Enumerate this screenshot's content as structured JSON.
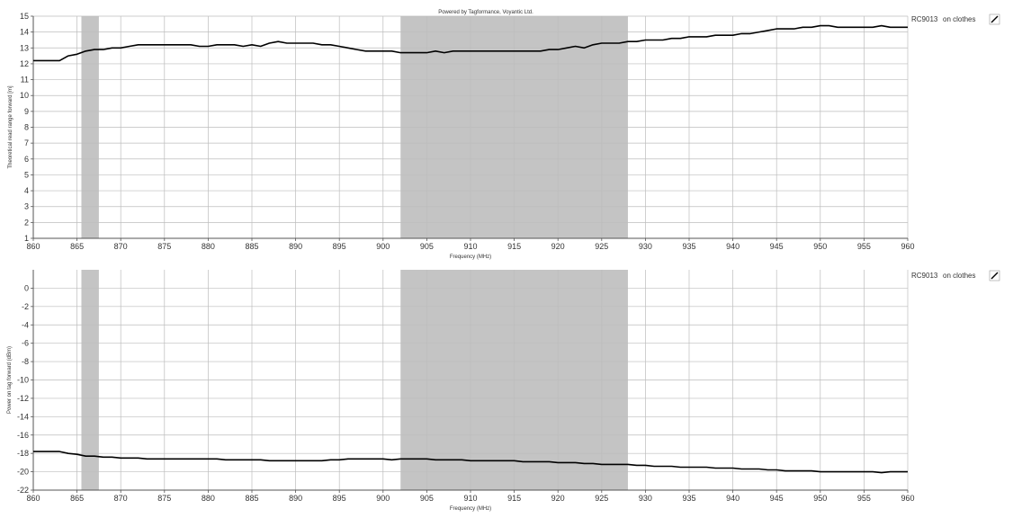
{
  "banner": "Powered by Tagformance, Voyantic Ltd.",
  "chart_data": [
    {
      "type": "line",
      "xlabel": "Frequency (MHz)",
      "ylabel": "Theoretical read range forward [m]",
      "xlim": [
        860,
        960
      ],
      "ylim": [
        1,
        15
      ],
      "xticks": [
        860,
        865,
        870,
        875,
        880,
        885,
        890,
        895,
        900,
        905,
        910,
        915,
        920,
        925,
        930,
        935,
        940,
        945,
        950,
        955,
        960
      ],
      "yticks": [
        1,
        2,
        3,
        4,
        5,
        6,
        7,
        8,
        9,
        10,
        11,
        12,
        13,
        14,
        15
      ],
      "grid": true,
      "legend_position": "right",
      "shaded_bands": [
        [
          865.5,
          867.5
        ],
        [
          902,
          928
        ]
      ],
      "series": [
        {
          "name": "RC9013",
          "label": "on clothes",
          "color": "#000000",
          "x": [
            860,
            861,
            862,
            863,
            864,
            865,
            866,
            867,
            868,
            869,
            870,
            871,
            872,
            873,
            874,
            875,
            876,
            877,
            878,
            879,
            880,
            881,
            882,
            883,
            884,
            885,
            886,
            887,
            888,
            889,
            890,
            891,
            892,
            893,
            894,
            895,
            896,
            897,
            898,
            899,
            900,
            901,
            902,
            903,
            904,
            905,
            906,
            907,
            908,
            909,
            910,
            911,
            912,
            913,
            914,
            915,
            916,
            917,
            918,
            919,
            920,
            921,
            922,
            923,
            924,
            925,
            926,
            927,
            928,
            929,
            930,
            931,
            932,
            933,
            934,
            935,
            936,
            937,
            938,
            939,
            940,
            941,
            942,
            943,
            944,
            945,
            946,
            947,
            948,
            949,
            950,
            951,
            952,
            953,
            954,
            955,
            956,
            957,
            958,
            959,
            960
          ],
          "y": [
            12.2,
            12.2,
            12.2,
            12.2,
            12.5,
            12.6,
            12.8,
            12.9,
            12.9,
            13.0,
            13.0,
            13.1,
            13.2,
            13.2,
            13.2,
            13.2,
            13.2,
            13.2,
            13.2,
            13.1,
            13.1,
            13.2,
            13.2,
            13.2,
            13.1,
            13.2,
            13.1,
            13.3,
            13.4,
            13.3,
            13.3,
            13.3,
            13.3,
            13.2,
            13.2,
            13.1,
            13.0,
            12.9,
            12.8,
            12.8,
            12.8,
            12.8,
            12.7,
            12.7,
            12.7,
            12.7,
            12.8,
            12.7,
            12.8,
            12.8,
            12.8,
            12.8,
            12.8,
            12.8,
            12.8,
            12.8,
            12.8,
            12.8,
            12.8,
            12.9,
            12.9,
            13.0,
            13.1,
            13.0,
            13.2,
            13.3,
            13.3,
            13.3,
            13.4,
            13.4,
            13.5,
            13.5,
            13.5,
            13.6,
            13.6,
            13.7,
            13.7,
            13.7,
            13.8,
            13.8,
            13.8,
            13.9,
            13.9,
            14.0,
            14.1,
            14.2,
            14.2,
            14.2,
            14.3,
            14.3,
            14.4,
            14.4,
            14.3,
            14.3,
            14.3,
            14.3,
            14.3,
            14.4,
            14.3,
            14.3,
            14.3
          ]
        }
      ]
    },
    {
      "type": "line",
      "xlabel": "Frequency (MHz)",
      "ylabel": "Power on tag forward (dBm)",
      "xlim": [
        860,
        960
      ],
      "ylim": [
        -22,
        2
      ],
      "xticks": [
        860,
        865,
        870,
        875,
        880,
        885,
        890,
        895,
        900,
        905,
        910,
        915,
        920,
        925,
        930,
        935,
        940,
        945,
        950,
        955,
        960
      ],
      "yticks": [
        0,
        -2,
        -4,
        -6,
        -8,
        -10,
        -12,
        -14,
        -16,
        -18,
        -20,
        -22
      ],
      "grid": true,
      "legend_position": "right",
      "shaded_bands": [
        [
          865.5,
          867.5
        ],
        [
          902,
          928
        ]
      ],
      "series": [
        {
          "name": "RC9013",
          "label": "on clothes",
          "color": "#000000",
          "x": [
            860,
            861,
            862,
            863,
            864,
            865,
            866,
            867,
            868,
            869,
            870,
            871,
            872,
            873,
            874,
            875,
            876,
            877,
            878,
            879,
            880,
            881,
            882,
            883,
            884,
            885,
            886,
            887,
            888,
            889,
            890,
            891,
            892,
            893,
            894,
            895,
            896,
            897,
            898,
            899,
            900,
            901,
            902,
            903,
            904,
            905,
            906,
            907,
            908,
            909,
            910,
            911,
            912,
            913,
            914,
            915,
            916,
            917,
            918,
            919,
            920,
            921,
            922,
            923,
            924,
            925,
            926,
            927,
            928,
            929,
            930,
            931,
            932,
            933,
            934,
            935,
            936,
            937,
            938,
            939,
            940,
            941,
            942,
            943,
            944,
            945,
            946,
            947,
            948,
            949,
            950,
            951,
            952,
            953,
            954,
            955,
            956,
            957,
            958,
            959,
            960
          ],
          "y": [
            -17.8,
            -17.8,
            -17.8,
            -17.8,
            -18.0,
            -18.1,
            -18.3,
            -18.3,
            -18.4,
            -18.4,
            -18.5,
            -18.5,
            -18.5,
            -18.6,
            -18.6,
            -18.6,
            -18.6,
            -18.6,
            -18.6,
            -18.6,
            -18.6,
            -18.6,
            -18.7,
            -18.7,
            -18.7,
            -18.7,
            -18.7,
            -18.8,
            -18.8,
            -18.8,
            -18.8,
            -18.8,
            -18.8,
            -18.8,
            -18.7,
            -18.7,
            -18.6,
            -18.6,
            -18.6,
            -18.6,
            -18.6,
            -18.7,
            -18.6,
            -18.6,
            -18.6,
            -18.6,
            -18.7,
            -18.7,
            -18.7,
            -18.7,
            -18.8,
            -18.8,
            -18.8,
            -18.8,
            -18.8,
            -18.8,
            -18.9,
            -18.9,
            -18.9,
            -18.9,
            -19.0,
            -19.0,
            -19.0,
            -19.1,
            -19.1,
            -19.2,
            -19.2,
            -19.2,
            -19.2,
            -19.3,
            -19.3,
            -19.4,
            -19.4,
            -19.4,
            -19.5,
            -19.5,
            -19.5,
            -19.5,
            -19.6,
            -19.6,
            -19.6,
            -19.7,
            -19.7,
            -19.7,
            -19.8,
            -19.8,
            -19.9,
            -19.9,
            -19.9,
            -19.9,
            -20.0,
            -20.0,
            -20.0,
            -20.0,
            -20.0,
            -20.0,
            -20.0,
            -20.1,
            -20.0,
            -20.0,
            -20.0
          ]
        }
      ]
    }
  ]
}
